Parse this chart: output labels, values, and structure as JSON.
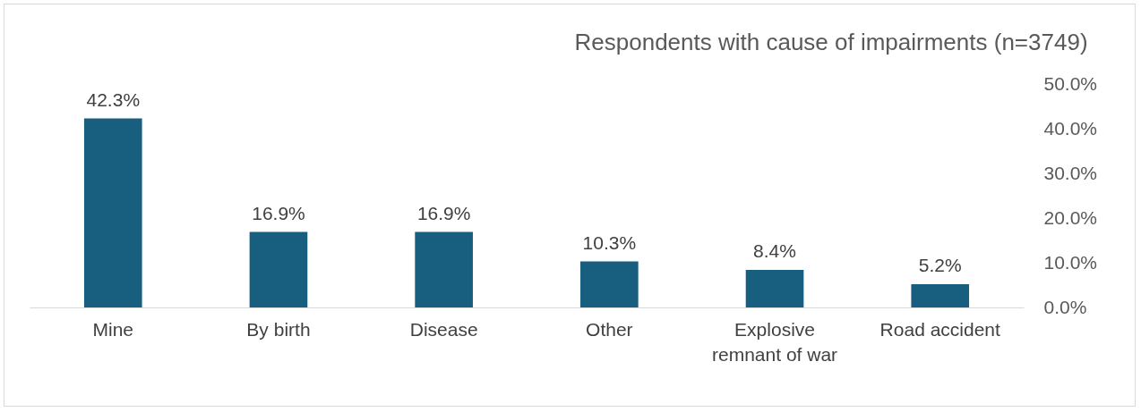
{
  "chart_data": {
    "type": "bar",
    "title": "Respondents with cause of impairments (n=3749)",
    "categories": [
      "Mine",
      "By birth",
      "Disease",
      "Other",
      "Explosive remnant of war",
      "Road accident"
    ],
    "values": [
      42.3,
      16.9,
      16.9,
      10.3,
      8.4,
      5.2
    ],
    "value_labels": [
      "42.3%",
      "16.9%",
      "16.9%",
      "10.3%",
      "8.4%",
      "5.2%"
    ],
    "color": "#175e7f",
    "ylim": [
      0,
      50
    ],
    "yticks": [
      {
        "value": 0,
        "label": "0.0%"
      },
      {
        "value": 10,
        "label": "10.0%"
      },
      {
        "value": 20,
        "label": "20.0%"
      },
      {
        "value": 30,
        "label": "30.0%"
      },
      {
        "value": 40,
        "label": "40.0%"
      },
      {
        "value": 50,
        "label": "50.0%"
      }
    ],
    "grid": false
  }
}
